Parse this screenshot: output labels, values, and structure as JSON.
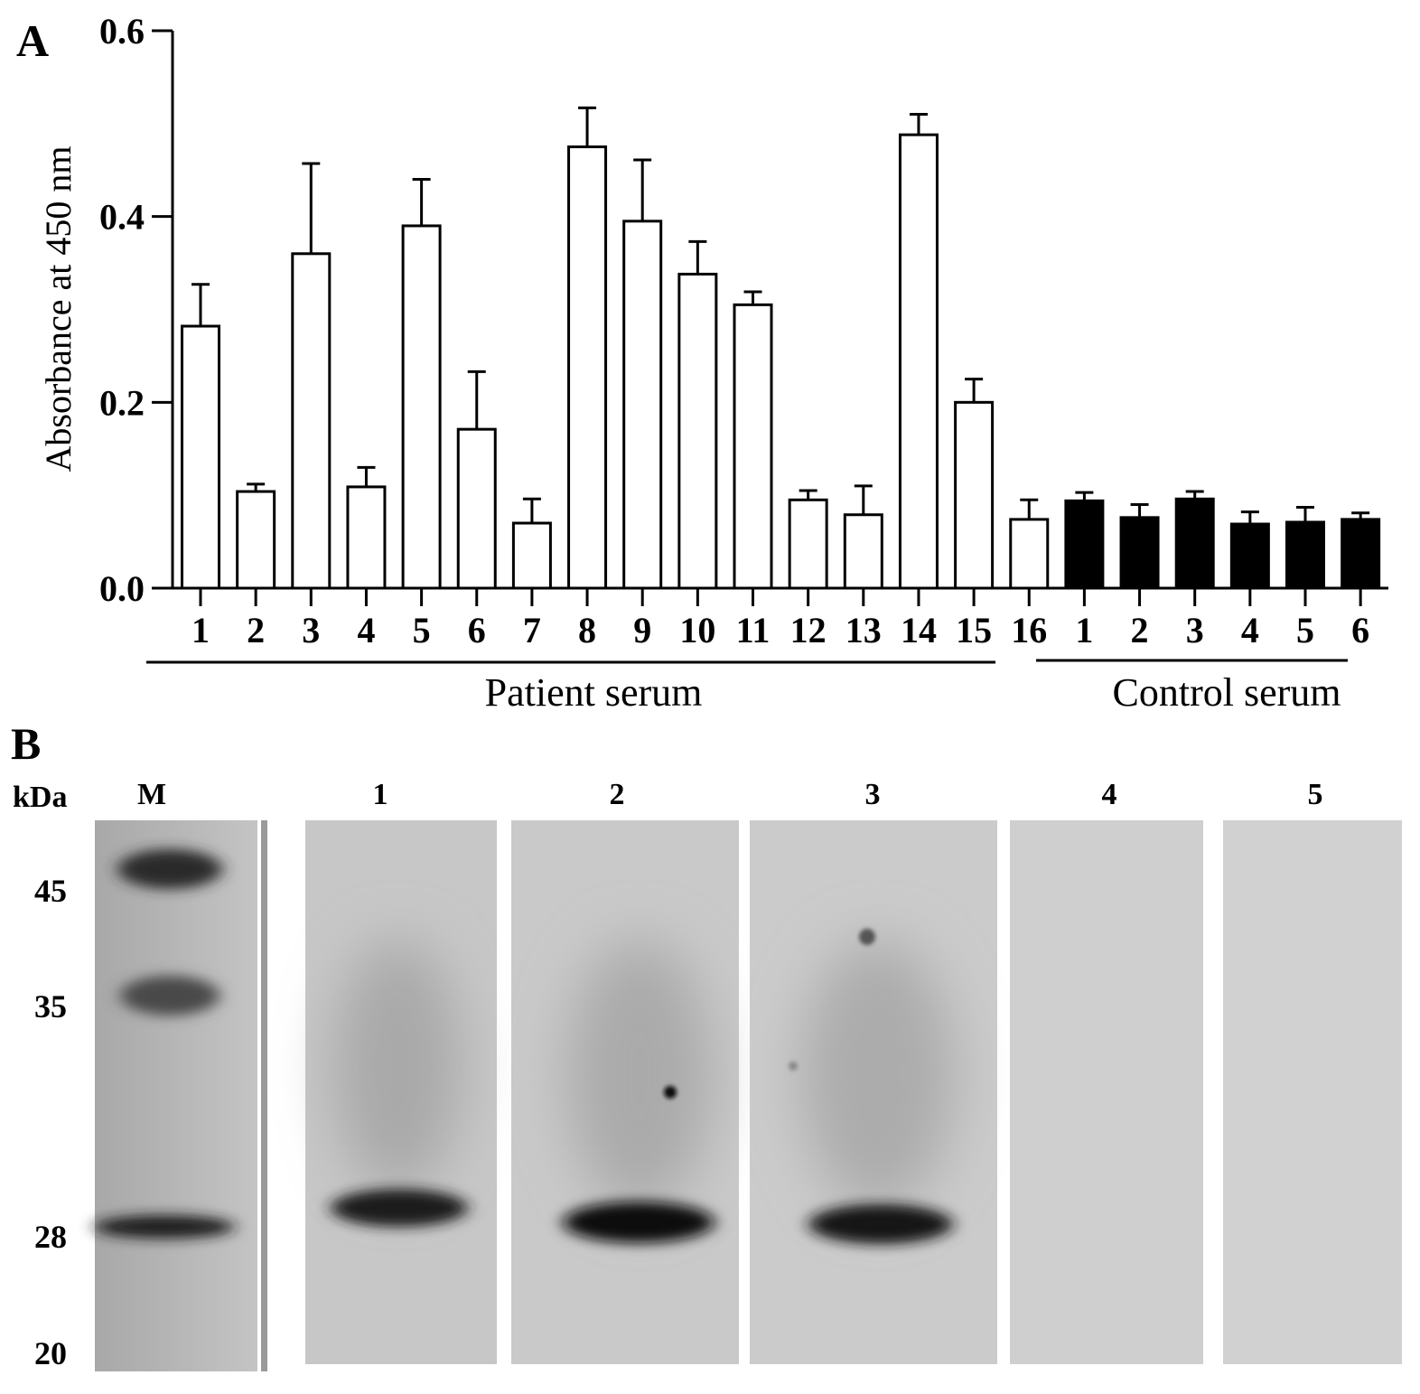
{
  "panel_a": {
    "label": "A",
    "chart_data": {
      "type": "bar",
      "ylabel": "Absorbance at 450 nm",
      "ylim": [
        0,
        0.6
      ],
      "yticks": [
        "0.0",
        "0.2",
        "0.4",
        "0.6"
      ],
      "ytick_values": [
        0,
        0.2,
        0.4,
        0.6
      ],
      "categories": [
        "1",
        "2",
        "3",
        "4",
        "5",
        "6",
        "7",
        "8",
        "9",
        "10",
        "11",
        "12",
        "13",
        "14",
        "15",
        "16",
        "1",
        "2",
        "3",
        "4",
        "5",
        "6"
      ],
      "values": [
        0.282,
        0.104,
        0.36,
        0.109,
        0.39,
        0.171,
        0.07,
        0.475,
        0.395,
        0.338,
        0.305,
        0.095,
        0.079,
        0.488,
        0.2,
        0.074,
        0.094,
        0.076,
        0.096,
        0.069,
        0.071,
        0.074
      ],
      "errors": [
        0.045,
        0.008,
        0.097,
        0.021,
        0.05,
        0.062,
        0.026,
        0.042,
        0.066,
        0.035,
        0.014,
        0.01,
        0.031,
        0.022,
        0.025,
        0.021,
        0.009,
        0.014,
        0.008,
        0.013,
        0.016,
        0.007
      ],
      "groups": [
        {
          "name": "Patient serum",
          "start": 0,
          "end": 15,
          "fill": "#ffffff"
        },
        {
          "name": "Control serum",
          "start": 16,
          "end": 21,
          "fill": "#000000"
        }
      ],
      "grid": false
    }
  },
  "panel_b": {
    "label": "B",
    "unit_label": "kDa",
    "marker_label": "M",
    "lane_labels": [
      "1",
      "2",
      "3",
      "4",
      "5"
    ],
    "marker_sizes": [
      "45",
      "35",
      "28",
      "20"
    ],
    "band_intensity": [
      0.85,
      0.95,
      0.9,
      0.0,
      0.0
    ]
  }
}
